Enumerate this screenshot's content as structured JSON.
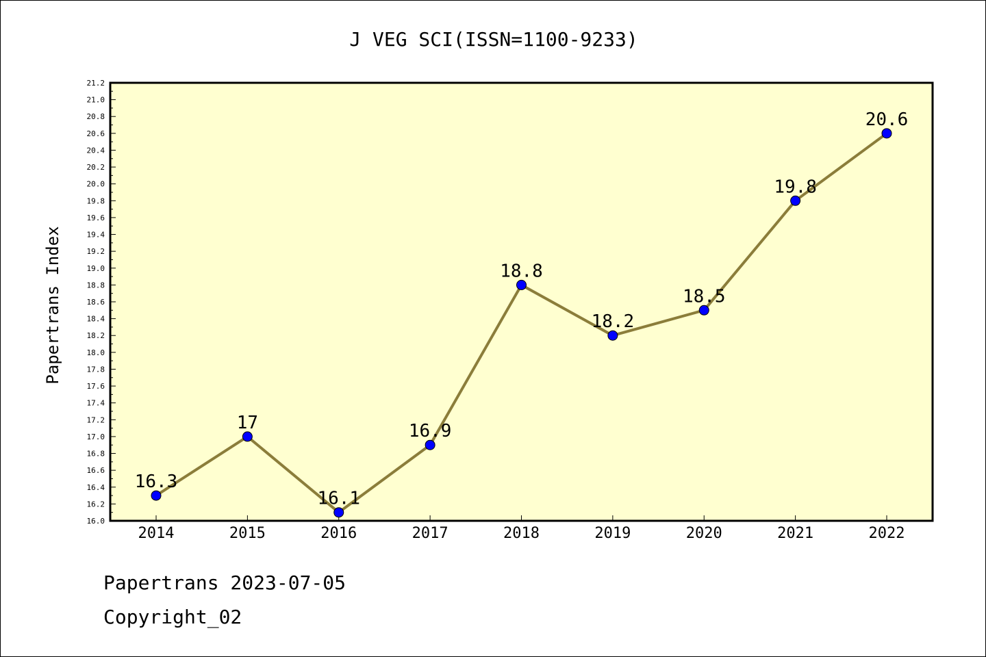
{
  "chart_data": {
    "type": "line",
    "title": "J VEG SCI(ISSN=1100-9233)",
    "ylabel": "Papertrans Index",
    "xlabel": "",
    "categories": [
      "2014",
      "2015",
      "2016",
      "2017",
      "2018",
      "2019",
      "2020",
      "2021",
      "2022"
    ],
    "series": [
      {
        "values": [
          16.3,
          17.0,
          16.1,
          16.9,
          18.8,
          18.2,
          18.5,
          19.8,
          20.6
        ],
        "labels": [
          "16.3",
          "17",
          "16.1",
          "16.9",
          "18.8",
          "18.2",
          "18.5",
          "19.8",
          "20.6"
        ]
      }
    ],
    "ylim": [
      16.0,
      21.2
    ],
    "ytick_step": 0.2,
    "grid": false,
    "colors": {
      "line": "#8B7D3A",
      "marker": "#0000FF",
      "plot_background": "#FFFFD0"
    }
  },
  "footer": {
    "line1": "Papertrans 2023-07-05",
    "line2": "Copyright_02"
  }
}
